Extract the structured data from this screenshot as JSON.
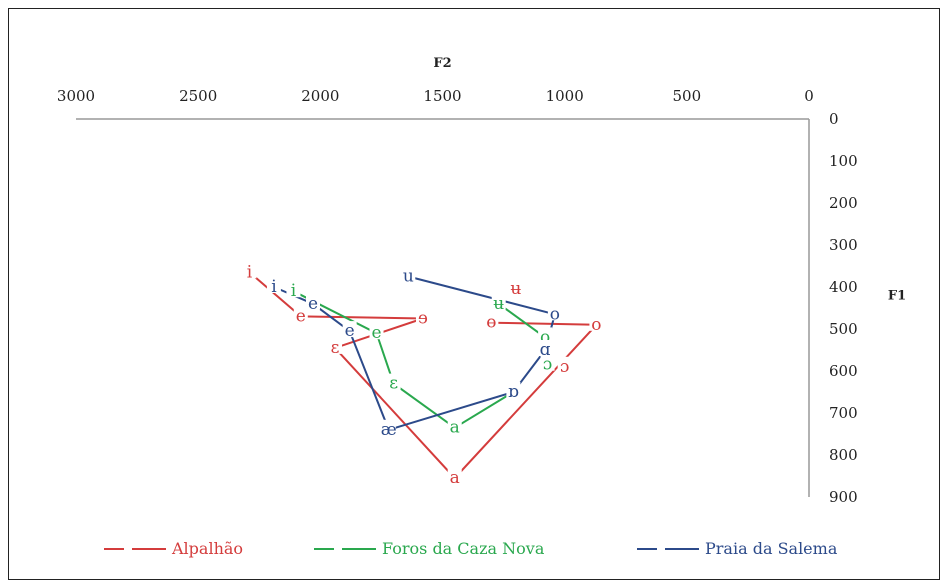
{
  "chart_data": {
    "type": "scatter",
    "title": "",
    "xlabel": "F2",
    "ylabel": "F1",
    "xlim": [
      3000,
      0
    ],
    "ylim": [
      0,
      900
    ],
    "x_ticks": [
      3000,
      2500,
      2000,
      1500,
      1000,
      500,
      0
    ],
    "y_ticks": [
      0,
      100,
      200,
      300,
      400,
      500,
      600,
      700,
      800,
      900
    ],
    "x_axis_position": "top",
    "y_axis_position": "right",
    "grid": false,
    "legend_position": "bottom",
    "series": [
      {
        "name": "Alpalhão",
        "color": "#d43c3c",
        "line_style": "dashed",
        "points": [
          {
            "label": "i",
            "f2": 2290,
            "f1": 365
          },
          {
            "label": "e",
            "f2": 2080,
            "f1": 470
          },
          {
            "label": "ɘ",
            "f2": 1580,
            "f1": 475
          },
          {
            "label": "ɛ",
            "f2": 1940,
            "f1": 545
          },
          {
            "label": "a",
            "f2": 1450,
            "f1": 855
          },
          {
            "label": "o",
            "f2": 870,
            "f1": 490
          },
          {
            "label": "ɔ",
            "f2": 1000,
            "f1": 590
          },
          {
            "label": "ʉ",
            "f2": 1200,
            "f1": 405
          },
          {
            "label": "ɵ",
            "f2": 1300,
            "f1": 485
          }
        ],
        "path": [
          "i",
          "e",
          "ɘ",
          "ɛ",
          "a",
          "o"
        ],
        "path2": [
          "ɵ",
          "o"
        ]
      },
      {
        "name": "Foros da Caza Nova",
        "color": "#2aa84e",
        "line_style": "dashed",
        "points": [
          {
            "label": "i",
            "f2": 2110,
            "f1": 410
          },
          {
            "label": "e",
            "f2": 1770,
            "f1": 510
          },
          {
            "label": "ɛ",
            "f2": 1700,
            "f1": 630
          },
          {
            "label": "a",
            "f2": 1450,
            "f1": 735
          },
          {
            "label": "ʉ",
            "f2": 1270,
            "f1": 440
          },
          {
            "label": "o",
            "f2": 1080,
            "f1": 520
          },
          {
            "label": "ɔ",
            "f2": 1070,
            "f1": 585
          }
        ],
        "path": [
          "i",
          "e",
          "ɛ",
          "a",
          "ɒ_ref"
        ],
        "path2": [
          "ʉ",
          "o",
          "ɔ"
        ]
      },
      {
        "name": "Praia da Salema",
        "color": "#2c4a8a",
        "line_style": "dashed",
        "points": [
          {
            "label": "i",
            "f2": 2190,
            "f1": 400
          },
          {
            "label": "e",
            "f2": 2030,
            "f1": 440
          },
          {
            "label": "e",
            "f2": 1880,
            "f1": 505
          },
          {
            "label": "æ",
            "f2": 1720,
            "f1": 740
          },
          {
            "label": "ɒ",
            "f2": 1210,
            "f1": 650
          },
          {
            "label": "ɑ",
            "f2": 1080,
            "f1": 550
          },
          {
            "label": "o",
            "f2": 1040,
            "f1": 465
          },
          {
            "label": "u",
            "f2": 1640,
            "f1": 375
          }
        ],
        "path": [
          "i",
          "e",
          "æ",
          "ɒ",
          "ɑ",
          "o",
          "u"
        ]
      }
    ]
  }
}
